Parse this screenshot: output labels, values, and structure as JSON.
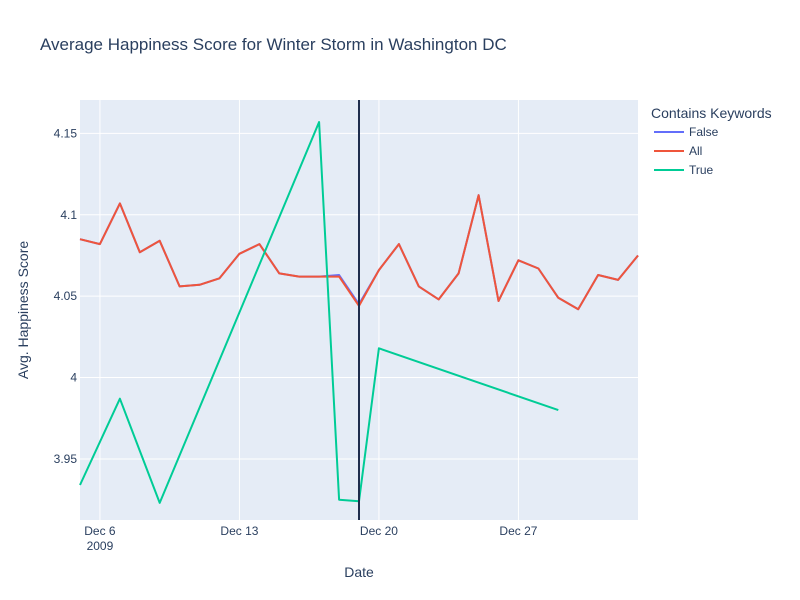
{
  "chart_data": {
    "type": "line",
    "title": "Average Happiness Score for Winter Storm in Washington DC",
    "xlabel": "Date",
    "ylabel": "Avg. Happiness Score",
    "xlim": [
      "2009-12-05",
      "2010-01-02"
    ],
    "ylim": [
      3.9125,
      4.1705
    ],
    "x_ticks": [
      {
        "date": "2009-12-06",
        "label": "Dec 6",
        "sublabel": "2009"
      },
      {
        "date": "2009-12-13",
        "label": "Dec 13"
      },
      {
        "date": "2009-12-20",
        "label": "Dec 20"
      },
      {
        "date": "2009-12-27",
        "label": "Dec 27"
      }
    ],
    "y_ticks": [
      {
        "value": 3.95,
        "label": "3.95"
      },
      {
        "value": 4.0,
        "label": "4"
      },
      {
        "value": 4.05,
        "label": "4.05"
      },
      {
        "value": 4.1,
        "label": "4.1"
      },
      {
        "value": 4.15,
        "label": "4.15"
      }
    ],
    "grid": true,
    "legend": {
      "title": "Contains Keywords",
      "position": "top-right"
    },
    "vline": {
      "date": "2009-12-19",
      "color": "#1f2d4d"
    },
    "series": [
      {
        "name": "False",
        "color": "#636efa",
        "points": [
          {
            "date": "2009-12-05",
            "y": 4.085
          },
          {
            "date": "2009-12-06",
            "y": 4.082
          },
          {
            "date": "2009-12-07",
            "y": 4.107
          },
          {
            "date": "2009-12-08",
            "y": 4.077
          },
          {
            "date": "2009-12-09",
            "y": 4.084
          },
          {
            "date": "2009-12-10",
            "y": 4.056
          },
          {
            "date": "2009-12-11",
            "y": 4.057
          },
          {
            "date": "2009-12-12",
            "y": 4.061
          },
          {
            "date": "2009-12-13",
            "y": 4.076
          },
          {
            "date": "2009-12-14",
            "y": 4.082
          },
          {
            "date": "2009-12-15",
            "y": 4.064
          },
          {
            "date": "2009-12-16",
            "y": 4.062
          },
          {
            "date": "2009-12-17",
            "y": 4.062
          },
          {
            "date": "2009-12-18",
            "y": 4.063
          },
          {
            "date": "2009-12-19",
            "y": 4.045
          },
          {
            "date": "2009-12-20",
            "y": 4.066
          },
          {
            "date": "2009-12-21",
            "y": 4.082
          },
          {
            "date": "2009-12-22",
            "y": 4.056
          },
          {
            "date": "2009-12-23",
            "y": 4.048
          },
          {
            "date": "2009-12-24",
            "y": 4.064
          },
          {
            "date": "2009-12-25",
            "y": 4.112
          },
          {
            "date": "2009-12-26",
            "y": 4.047
          },
          {
            "date": "2009-12-27",
            "y": 4.072
          },
          {
            "date": "2009-12-28",
            "y": 4.067
          },
          {
            "date": "2009-12-29",
            "y": 4.049
          },
          {
            "date": "2009-12-30",
            "y": 4.042
          },
          {
            "date": "2009-12-31",
            "y": 4.063
          },
          {
            "date": "2010-01-01",
            "y": 4.06
          },
          {
            "date": "2010-01-02",
            "y": 4.075
          }
        ]
      },
      {
        "name": "All",
        "color": "#ef553b",
        "points": [
          {
            "date": "2009-12-05",
            "y": 4.085
          },
          {
            "date": "2009-12-06",
            "y": 4.082
          },
          {
            "date": "2009-12-07",
            "y": 4.107
          },
          {
            "date": "2009-12-08",
            "y": 4.077
          },
          {
            "date": "2009-12-09",
            "y": 4.084
          },
          {
            "date": "2009-12-10",
            "y": 4.056
          },
          {
            "date": "2009-12-11",
            "y": 4.057
          },
          {
            "date": "2009-12-12",
            "y": 4.061
          },
          {
            "date": "2009-12-13",
            "y": 4.076
          },
          {
            "date": "2009-12-14",
            "y": 4.082
          },
          {
            "date": "2009-12-15",
            "y": 4.064
          },
          {
            "date": "2009-12-16",
            "y": 4.062
          },
          {
            "date": "2009-12-17",
            "y": 4.062
          },
          {
            "date": "2009-12-18",
            "y": 4.062
          },
          {
            "date": "2009-12-19",
            "y": 4.044
          },
          {
            "date": "2009-12-20",
            "y": 4.066
          },
          {
            "date": "2009-12-21",
            "y": 4.082
          },
          {
            "date": "2009-12-22",
            "y": 4.056
          },
          {
            "date": "2009-12-23",
            "y": 4.048
          },
          {
            "date": "2009-12-24",
            "y": 4.064
          },
          {
            "date": "2009-12-25",
            "y": 4.112
          },
          {
            "date": "2009-12-26",
            "y": 4.047
          },
          {
            "date": "2009-12-27",
            "y": 4.072
          },
          {
            "date": "2009-12-28",
            "y": 4.067
          },
          {
            "date": "2009-12-29",
            "y": 4.049
          },
          {
            "date": "2009-12-30",
            "y": 4.042
          },
          {
            "date": "2009-12-31",
            "y": 4.063
          },
          {
            "date": "2010-01-01",
            "y": 4.06
          },
          {
            "date": "2010-01-02",
            "y": 4.075
          }
        ]
      },
      {
        "name": "True",
        "color": "#00cc96",
        "points": [
          {
            "date": "2009-12-05",
            "y": 3.934
          },
          {
            "date": "2009-12-07",
            "y": 3.987
          },
          {
            "date": "2009-12-09",
            "y": 3.923
          },
          {
            "date": "2009-12-17",
            "y": 4.157
          },
          {
            "date": "2009-12-18",
            "y": 3.925
          },
          {
            "date": "2009-12-19",
            "y": 3.924
          },
          {
            "date": "2009-12-20",
            "y": 4.018
          },
          {
            "date": "2009-12-29",
            "y": 3.98
          }
        ]
      }
    ]
  }
}
